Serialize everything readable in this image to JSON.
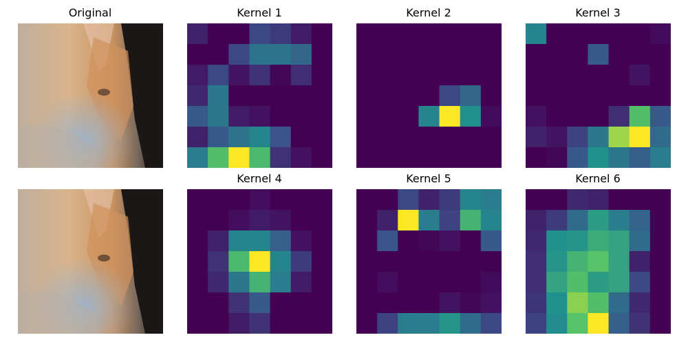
{
  "colormap": "viridis",
  "colormap_stops": [
    "#440154",
    "#3b528b",
    "#21918c",
    "#5ec962",
    "#fde725"
  ],
  "original_panel": {
    "title": "Original",
    "image_description_tag": "cat-photo",
    "palette": {
      "fur_light": "#d8b088",
      "fur_orange": "#c98a5a",
      "fur_shadow": "#8a8fa0",
      "bluish": "#9fb3c8",
      "dark_bg": "#1e1a18"
    }
  },
  "chart_data": [
    {
      "type": "heatmap",
      "title": "Kernel 1",
      "rows": 7,
      "cols": 7,
      "values": [
        [
          0.1,
          0.0,
          0.0,
          0.22,
          0.18,
          0.08,
          0.0
        ],
        [
          0.0,
          0.0,
          0.22,
          0.38,
          0.38,
          0.33,
          0.0
        ],
        [
          0.08,
          0.22,
          0.06,
          0.15,
          0.02,
          0.14,
          0.0
        ],
        [
          0.12,
          0.4,
          0.0,
          0.0,
          0.0,
          0.0,
          0.0
        ],
        [
          0.28,
          0.4,
          0.08,
          0.05,
          0.0,
          0.0,
          0.0
        ],
        [
          0.1,
          0.28,
          0.38,
          0.45,
          0.25,
          0.0,
          0.0
        ],
        [
          0.42,
          0.7,
          1.0,
          0.68,
          0.15,
          0.05,
          0.0
        ]
      ]
    },
    {
      "type": "heatmap",
      "title": "Kernel 2",
      "rows": 7,
      "cols": 7,
      "values": [
        [
          0,
          0,
          0,
          0,
          0,
          0,
          0
        ],
        [
          0,
          0,
          0,
          0,
          0,
          0,
          0
        ],
        [
          0,
          0,
          0,
          0,
          0,
          0,
          0
        ],
        [
          0,
          0,
          0,
          0,
          0.22,
          0.33,
          0
        ],
        [
          0,
          0,
          0,
          0.45,
          1.0,
          0.5,
          0.03
        ],
        [
          0,
          0,
          0,
          0,
          0,
          0,
          0
        ],
        [
          0,
          0,
          0,
          0,
          0,
          0,
          0
        ]
      ]
    },
    {
      "type": "heatmap",
      "title": "Kernel 3",
      "rows": 7,
      "cols": 7,
      "values": [
        [
          0.45,
          0.0,
          0.0,
          0.0,
          0.0,
          0.0,
          0.03
        ],
        [
          0.0,
          0.0,
          0.0,
          0.28,
          0.0,
          0.0,
          0.0
        ],
        [
          0.0,
          0.0,
          0.0,
          0.0,
          0.0,
          0.06,
          0.0
        ],
        [
          0.0,
          0.0,
          0.0,
          0.0,
          0.0,
          0.0,
          0.0
        ],
        [
          0.05,
          0.0,
          0.0,
          0.0,
          0.14,
          0.7,
          0.28
        ],
        [
          0.1,
          0.06,
          0.2,
          0.4,
          0.85,
          1.0,
          0.35
        ],
        [
          0.0,
          0.02,
          0.28,
          0.5,
          0.4,
          0.3,
          0.42
        ]
      ]
    },
    {
      "type": "heatmap",
      "title": "Kernel 4",
      "rows": 7,
      "cols": 7,
      "values": [
        [
          0.0,
          0.0,
          0.0,
          0.04,
          0.0,
          0.0,
          0.0
        ],
        [
          0.0,
          0.0,
          0.04,
          0.08,
          0.06,
          0.0,
          0.0
        ],
        [
          0.0,
          0.1,
          0.45,
          0.45,
          0.3,
          0.05,
          0.0
        ],
        [
          0.0,
          0.15,
          0.68,
          1.0,
          0.45,
          0.18,
          0.0
        ],
        [
          0.0,
          0.12,
          0.4,
          0.65,
          0.42,
          0.08,
          0.0
        ],
        [
          0.0,
          0.0,
          0.15,
          0.28,
          0.0,
          0.0,
          0.0
        ],
        [
          0.0,
          0.0,
          0.08,
          0.15,
          0.0,
          0.0,
          0.0
        ]
      ]
    },
    {
      "type": "heatmap",
      "title": "Kernel 5",
      "rows": 7,
      "cols": 7,
      "values": [
        [
          0.0,
          0.0,
          0.22,
          0.1,
          0.18,
          0.45,
          0.42
        ],
        [
          0.0,
          0.1,
          1.0,
          0.42,
          0.2,
          0.65,
          0.45
        ],
        [
          0.0,
          0.25,
          0.0,
          0.02,
          0.05,
          0.0,
          0.28
        ],
        [
          0.0,
          0.0,
          0.0,
          0.0,
          0.0,
          0.0,
          0.0
        ],
        [
          0.0,
          0.04,
          0.0,
          0.0,
          0.0,
          0.0,
          0.03
        ],
        [
          0.0,
          0.0,
          0.0,
          0.0,
          0.06,
          0.02,
          0.05
        ],
        [
          0.0,
          0.2,
          0.42,
          0.42,
          0.52,
          0.35,
          0.22
        ]
      ]
    },
    {
      "type": "heatmap",
      "title": "Kernel 6",
      "rows": 7,
      "cols": 7,
      "values": [
        [
          0.0,
          0.0,
          0.12,
          0.1,
          0.0,
          0.0,
          0.0
        ],
        [
          0.1,
          0.18,
          0.35,
          0.55,
          0.42,
          0.32,
          0.0
        ],
        [
          0.12,
          0.5,
          0.52,
          0.62,
          0.58,
          0.35,
          0.0
        ],
        [
          0.14,
          0.52,
          0.65,
          0.72,
          0.58,
          0.1,
          0.0
        ],
        [
          0.14,
          0.58,
          0.7,
          0.55,
          0.58,
          0.22,
          0.0
        ],
        [
          0.16,
          0.5,
          0.82,
          0.7,
          0.35,
          0.12,
          0.0
        ],
        [
          0.2,
          0.48,
          0.72,
          1.0,
          0.3,
          0.15,
          0.0
        ]
      ]
    }
  ],
  "lower_original": {
    "title": ""
  }
}
